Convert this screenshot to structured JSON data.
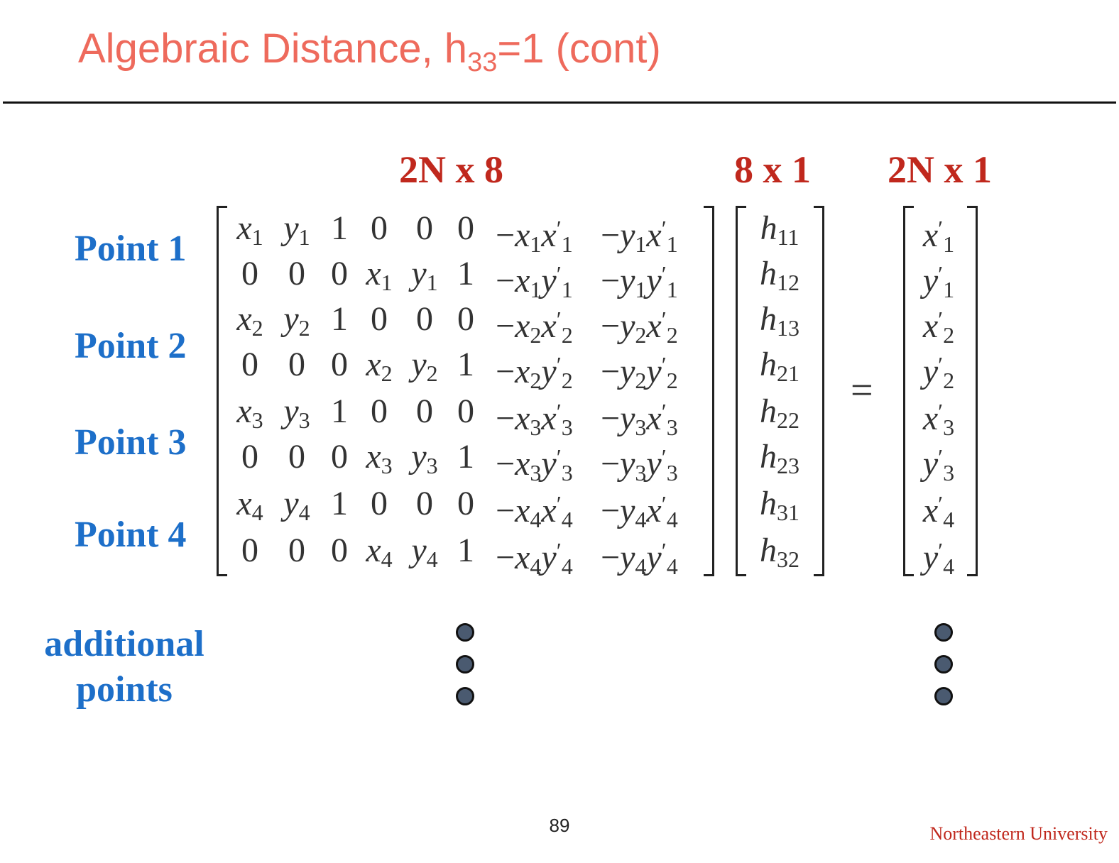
{
  "title": {
    "main": "Algebraic Distance, h",
    "sub": "33",
    "tail": "=1 (cont)"
  },
  "dimensions": {
    "matrix": "2N x 8",
    "h_vector": "8 x 1",
    "rhs": "2N x 1"
  },
  "point_labels": [
    "Point 1",
    "Point 2",
    "Point 3",
    "Point 4"
  ],
  "additional_label": [
    "additional",
    "points"
  ],
  "page_number": "89",
  "logo": "Northeastern University",
  "colors": {
    "title": "#ee6a5c",
    "dimension": "#c0281d",
    "point_label": "#1d6fc9",
    "logo": "#c0281d"
  },
  "matrix": {
    "rows": [
      [
        "x1",
        "y1",
        "1",
        "0",
        "0",
        "0",
        "−x1x′1",
        "−y1x′1"
      ],
      [
        "0",
        "0",
        "0",
        "x1",
        "y1",
        "1",
        "−x1y′1",
        "−y1y′1"
      ],
      [
        "x2",
        "y2",
        "1",
        "0",
        "0",
        "0",
        "−x2x′2",
        "−y2x′2"
      ],
      [
        "0",
        "0",
        "0",
        "x2",
        "y2",
        "1",
        "−x2y′2",
        "−y2y′2"
      ],
      [
        "x3",
        "y3",
        "1",
        "0",
        "0",
        "0",
        "−x3x′3",
        "−y3x′3"
      ],
      [
        "0",
        "0",
        "0",
        "x3",
        "y3",
        "1",
        "−x3y′3",
        "−y3y′3"
      ],
      [
        "x4",
        "y4",
        "1",
        "0",
        "0",
        "0",
        "−x4x′4",
        "−y4x′4"
      ],
      [
        "0",
        "0",
        "0",
        "x4",
        "y4",
        "1",
        "−x4y′4",
        "−y4y′4"
      ]
    ]
  },
  "h_vector": [
    "h11",
    "h12",
    "h13",
    "h21",
    "h22",
    "h23",
    "h31",
    "h32"
  ],
  "rhs_vector": [
    "x′1",
    "y′1",
    "x′2",
    "y′2",
    "x′3",
    "y′3",
    "x′4",
    "y′4"
  ],
  "equals_sign": "="
}
